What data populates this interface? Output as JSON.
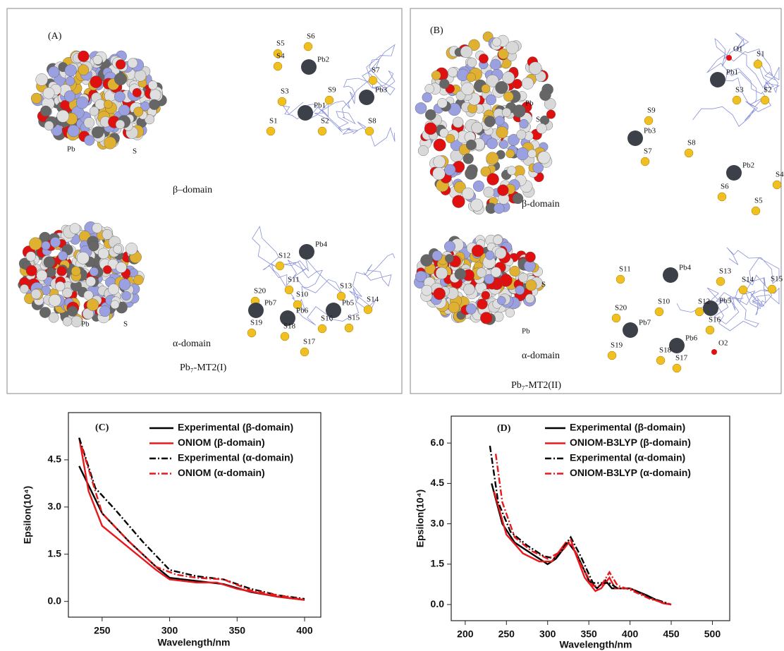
{
  "panels": [
    {
      "label": "(A)",
      "beta_label": "β–domain",
      "alpha_label": "α-domain",
      "caption": "Pb₇-MT2(I)",
      "atoms": [
        "S5",
        "S6",
        "S4",
        "Pb2",
        "S7",
        "S3",
        "S9",
        "Pb3",
        "Pb1",
        "S1",
        "S2",
        "S8",
        "Pb",
        "S",
        "S12",
        "Pb4",
        "S20",
        "S11",
        "S10",
        "S13",
        "Pb7",
        "Pb6",
        "Pb5",
        "S14",
        "S15",
        "S19",
        "S18",
        "S16",
        "S17",
        "Pb",
        "S"
      ]
    },
    {
      "label": "(B)",
      "beta_label": "β-domain",
      "alpha_label": "α-domain",
      "caption": "Pb₇-MT2(II)",
      "atoms": [
        "O1",
        "S1",
        "Pb1",
        "S3",
        "S2",
        "Pb",
        "S",
        "S9",
        "Pb3",
        "S8",
        "S7",
        "Pb2",
        "S4",
        "S6",
        "S5",
        "S11",
        "Pb4",
        "S13",
        "S14",
        "S15",
        "S10",
        "S12",
        "S",
        "S20",
        "Pb7",
        "S16",
        "Pb5",
        "Pb6",
        "O2",
        "S19",
        "S18",
        "S17",
        "Pb"
      ]
    }
  ],
  "chart_data": [
    {
      "type": "line",
      "title": "(C)",
      "x_label": "Wavelength/nm",
      "y_label": "Epsilon(10⁴)",
      "xlim": [
        225,
        412
      ],
      "xticks": [
        250,
        300,
        350,
        400
      ],
      "ylim": [
        -0.5,
        6.0
      ],
      "yticks": [
        {
          "value": 0,
          "label": "0.0"
        },
        1.5,
        {
          "value": 3,
          "label": "3.0"
        },
        4.5
      ],
      "series": [
        {
          "name": "Experimental (β-domain)",
          "color": "#000000",
          "style": "solid",
          "x": [
            233,
            250,
            270,
            290,
            300,
            320,
            340,
            360,
            380,
            400
          ],
          "values": [
            4.3,
            2.8,
            1.9,
            1.1,
            0.75,
            0.65,
            0.55,
            0.3,
            0.15,
            0.05
          ]
        },
        {
          "name": "ONIOM (β-domain)",
          "color": "#e8191c",
          "style": "solid",
          "x": [
            233,
            240,
            250,
            270,
            290,
            300,
            320,
            335,
            350,
            380,
            400
          ],
          "values": [
            5.2,
            3.5,
            2.4,
            1.7,
            1.0,
            0.7,
            0.6,
            0.6,
            0.4,
            0.15,
            0.05
          ]
        },
        {
          "name": "Experimental (α-domain)",
          "color": "#000000",
          "style": "dashdot",
          "x": [
            233,
            245,
            260,
            280,
            300,
            320,
            340,
            360,
            380,
            400
          ],
          "values": [
            5.2,
            3.6,
            2.9,
            1.9,
            1.0,
            0.8,
            0.7,
            0.4,
            0.2,
            0.08
          ]
        },
        {
          "name": "ONIOM (α-domain)",
          "color": "#e8191c",
          "style": "dashdot",
          "x": [
            235,
            250,
            270,
            290,
            305,
            320,
            340,
            360,
            380,
            400
          ],
          "values": [
            4.9,
            2.8,
            1.9,
            1.1,
            0.85,
            0.75,
            0.7,
            0.35,
            0.2,
            0.05
          ]
        }
      ]
    },
    {
      "type": "line",
      "title": "(D)",
      "x_label": "Wavelength/nm",
      "y_label": "Epsilon(10⁴)",
      "xlim": [
        183,
        521
      ],
      "xticks": [
        200,
        250,
        300,
        350,
        400,
        450,
        500
      ],
      "ylim": [
        -0.6,
        7.0
      ],
      "yticks": [
        {
          "value": 0,
          "label": "0.0"
        },
        1.5,
        {
          "value": 3,
          "label": "3.0"
        },
        4.5,
        {
          "value": 6,
          "label": "6.0"
        }
      ],
      "series": [
        {
          "name": "Experimental (β-domain)",
          "color": "#000000",
          "style": "solid",
          "x": [
            232,
            245,
            260,
            280,
            300,
            310,
            325,
            335,
            350,
            360,
            370,
            378,
            390,
            400,
            420,
            440,
            450
          ],
          "values": [
            4.5,
            3.0,
            2.3,
            1.9,
            1.5,
            1.7,
            2.3,
            1.9,
            0.9,
            0.6,
            0.9,
            0.6,
            0.6,
            0.6,
            0.35,
            0.05,
            0.0
          ]
        },
        {
          "name": "ONIOM-B3LYP (β-domain)",
          "color": "#e8191c",
          "style": "solid",
          "x": [
            235,
            250,
            270,
            290,
            305,
            322,
            330,
            345,
            358,
            365,
            375,
            382,
            400,
            420,
            440,
            450
          ],
          "values": [
            4.2,
            2.6,
            1.9,
            1.6,
            1.6,
            2.3,
            2.2,
            1.0,
            0.5,
            0.6,
            1.0,
            0.6,
            0.6,
            0.3,
            0.05,
            0.0
          ]
        },
        {
          "name": "Experimental (α-domain)",
          "color": "#000000",
          "style": "dashdot",
          "x": [
            230,
            240,
            255,
            275,
            295,
            310,
            328,
            340,
            355,
            365,
            375,
            385,
            400,
            425,
            450
          ],
          "values": [
            5.9,
            3.8,
            2.7,
            2.2,
            1.8,
            1.7,
            2.5,
            1.8,
            0.8,
            0.8,
            0.8,
            0.6,
            0.6,
            0.25,
            0.0
          ]
        },
        {
          "name": "ONIOM-B3LYP (α-domain)",
          "color": "#e8191c",
          "style": "dashdot",
          "x": [
            237,
            245,
            260,
            280,
            300,
            318,
            328,
            340,
            355,
            365,
            375,
            385,
            400,
            425,
            450
          ],
          "values": [
            5.6,
            3.8,
            2.5,
            2.0,
            1.7,
            2.0,
            2.4,
            1.5,
            0.7,
            0.7,
            1.2,
            0.7,
            0.55,
            0.2,
            0.0
          ]
        }
      ]
    }
  ]
}
